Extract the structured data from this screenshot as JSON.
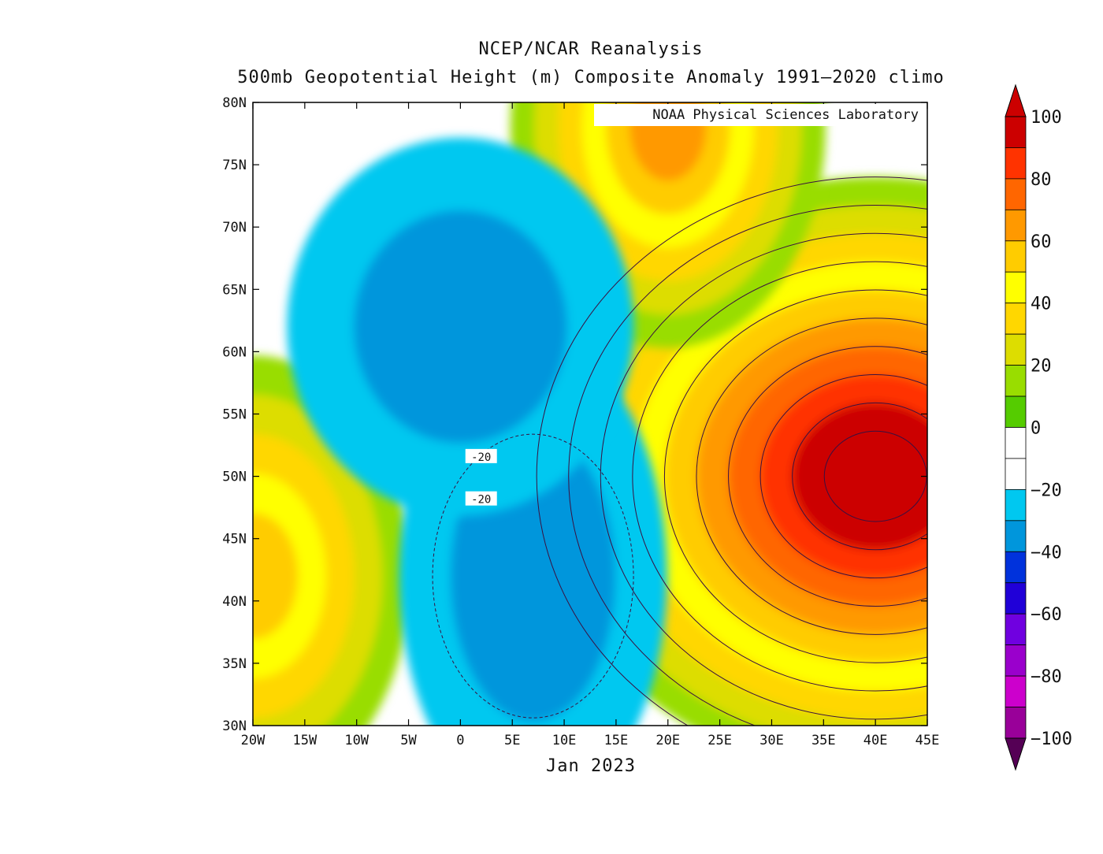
{
  "header": {
    "title": "NCEP/NCAR Reanalysis",
    "subtitle": "500mb Geopotential Height (m) Composite Anomaly 1991–2020 climo"
  },
  "credit": "NOAA Physical Sciences Laboratory",
  "period": "Jan 2023",
  "chart_data": {
    "type": "heatmap",
    "title": "NCEP/NCAR Reanalysis",
    "subtitle": "500mb Geopotential Height (m) Composite Anomaly 1991–2020 climo",
    "xlabel": "Jan 2023",
    "ylabel": "",
    "xlim": [
      -20,
      45
    ],
    "ylim": [
      30,
      80
    ],
    "x_ticks": [
      "20W",
      "15W",
      "10W",
      "5W",
      "0",
      "5E",
      "10E",
      "15E",
      "20E",
      "25E",
      "30E",
      "35E",
      "40E",
      "45E"
    ],
    "y_ticks": [
      "80N",
      "75N",
      "70N",
      "65N",
      "60N",
      "55N",
      "50N",
      "45N",
      "40N",
      "35N",
      "30N"
    ],
    "contour_labels": [
      "-20",
      "-20"
    ],
    "anomaly_centers": [
      {
        "lon": 40,
        "lat": 50,
        "value": 100
      },
      {
        "lon": -20,
        "lat": 42,
        "value": 55
      },
      {
        "lon": 20,
        "lat": 78,
        "value": 60
      },
      {
        "lon": 7,
        "lat": 42,
        "value": -38
      },
      {
        "lon": 0,
        "lat": 62,
        "value": -30
      }
    ],
    "colorbar": {
      "tick_labels": [
        "100",
        "80",
        "60",
        "40",
        "20",
        "0",
        "−20",
        "−40",
        "−60",
        "−80",
        "−100"
      ],
      "levels": [
        {
          "min": 90,
          "max": 100,
          "color": "#cc0000"
        },
        {
          "min": 80,
          "max": 90,
          "color": "#ff3300"
        },
        {
          "min": 70,
          "max": 80,
          "color": "#ff6600"
        },
        {
          "min": 60,
          "max": 70,
          "color": "#ff9900"
        },
        {
          "min": 50,
          "max": 60,
          "color": "#ffcc00"
        },
        {
          "min": 40,
          "max": 50,
          "color": "#ffff00"
        },
        {
          "min": 30,
          "max": 40,
          "color": "#ffd700"
        },
        {
          "min": 20,
          "max": 30,
          "color": "#dddd00"
        },
        {
          "min": 10,
          "max": 20,
          "color": "#99dd00"
        },
        {
          "min": 0,
          "max": 10,
          "color": "#55cc00"
        },
        {
          "min": -10,
          "max": 0,
          "color": "#ffffff"
        },
        {
          "min": -20,
          "max": -10,
          "color": "#ffffff"
        },
        {
          "min": -30,
          "max": -20,
          "color": "#00c8f0"
        },
        {
          "min": -40,
          "max": -30,
          "color": "#0096dc"
        },
        {
          "min": -50,
          "max": -40,
          "color": "#0032dc"
        },
        {
          "min": -60,
          "max": -50,
          "color": "#2000d8"
        },
        {
          "min": -70,
          "max": -60,
          "color": "#7000e0"
        },
        {
          "min": -80,
          "max": -70,
          "color": "#9a00cc"
        },
        {
          "min": -90,
          "max": -80,
          "color": "#cc00cc"
        },
        {
          "min": -100,
          "max": -90,
          "color": "#990099"
        },
        {
          "min": -110,
          "max": -100,
          "color": "#660066"
        }
      ],
      "over_color": "#cc0000",
      "under_color": "#550055"
    }
  }
}
